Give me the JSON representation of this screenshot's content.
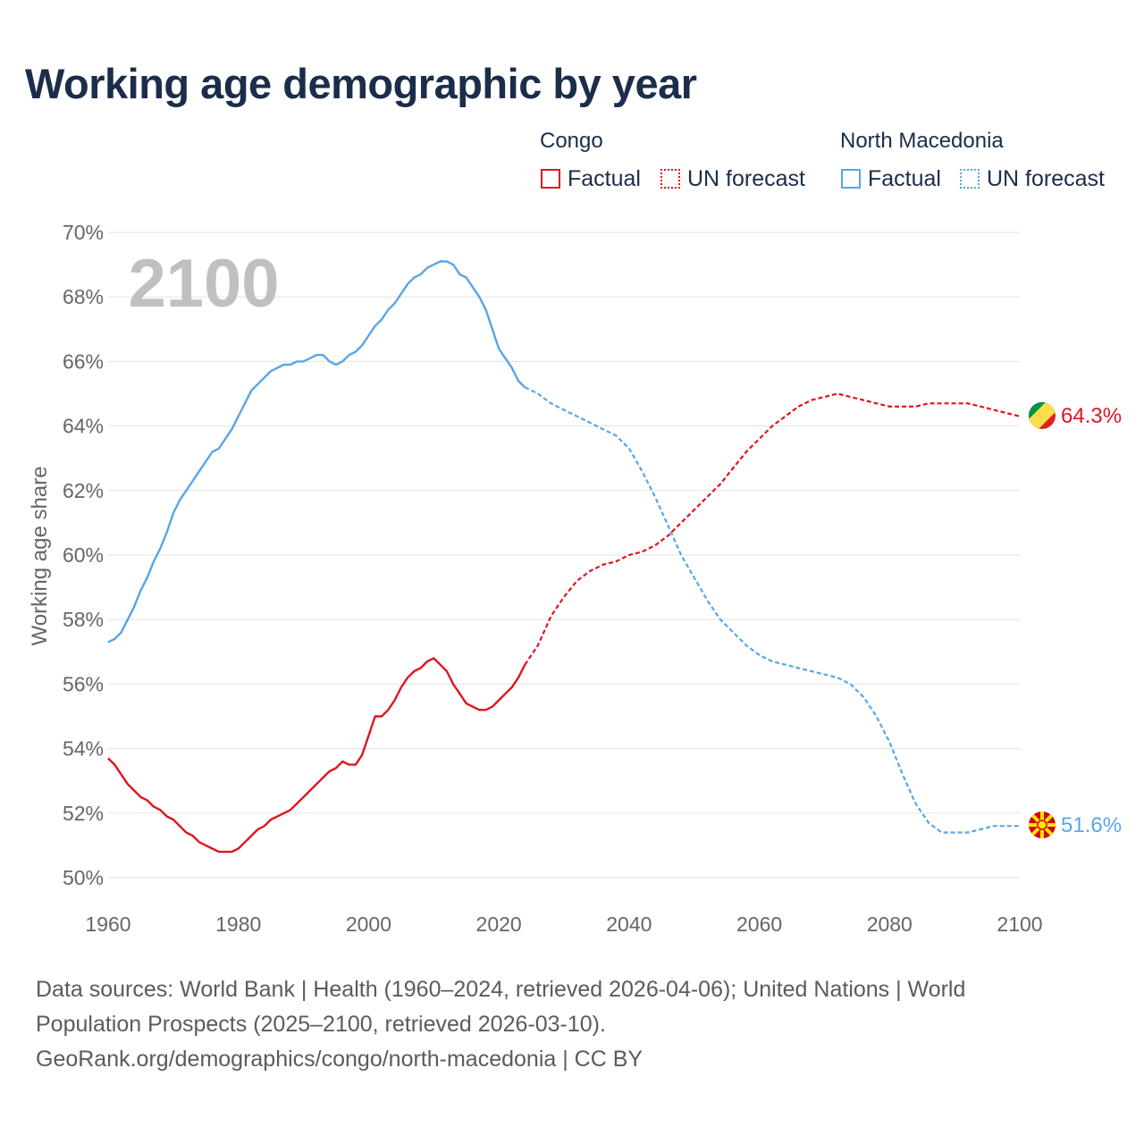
{
  "chart_data": {
    "type": "line",
    "title": "Working age demographic by year",
    "ylabel": "Working age share",
    "xlabel": "",
    "year_label": "2100",
    "xlim": [
      1960,
      2100
    ],
    "ylim": [
      50,
      70
    ],
    "x_ticks": [
      1960,
      1980,
      2000,
      2020,
      2040,
      2060,
      2080,
      2100
    ],
    "y_ticks": [
      50,
      52,
      54,
      56,
      58,
      60,
      62,
      64,
      66,
      68,
      70
    ],
    "y_tick_labels": [
      "50%",
      "52%",
      "54%",
      "56%",
      "58%",
      "60%",
      "62%",
      "64%",
      "66%",
      "68%",
      "70%"
    ],
    "x_tick_labels": [
      "1960",
      "1980",
      "2000",
      "2020",
      "2040",
      "2060",
      "2080",
      "2100"
    ],
    "factual_range": "1960–2024",
    "forecast_range": "2025–2100",
    "series": [
      {
        "country": "Congo",
        "color": "#e0141e",
        "end_label": "64.3%",
        "factual": {
          "x": [
            1960,
            1961,
            1962,
            1963,
            1964,
            1965,
            1966,
            1967,
            1968,
            1969,
            1970,
            1971,
            1972,
            1973,
            1974,
            1975,
            1976,
            1977,
            1978,
            1979,
            1980,
            1981,
            1982,
            1983,
            1984,
            1985,
            1986,
            1987,
            1988,
            1989,
            1990,
            1991,
            1992,
            1993,
            1994,
            1995,
            1996,
            1997,
            1998,
            1999,
            2000,
            2001,
            2002,
            2003,
            2004,
            2005,
            2006,
            2007,
            2008,
            2009,
            2010,
            2011,
            2012,
            2013,
            2014,
            2015,
            2016,
            2017,
            2018,
            2019,
            2020,
            2021,
            2022,
            2023,
            2024
          ],
          "y": [
            53.7,
            53.5,
            53.2,
            52.9,
            52.7,
            52.5,
            52.4,
            52.2,
            52.1,
            51.9,
            51.8,
            51.6,
            51.4,
            51.3,
            51.1,
            51.0,
            50.9,
            50.8,
            50.8,
            50.8,
            50.9,
            51.1,
            51.3,
            51.5,
            51.6,
            51.8,
            51.9,
            52.0,
            52.1,
            52.3,
            52.5,
            52.7,
            52.9,
            53.1,
            53.3,
            53.4,
            53.6,
            53.5,
            53.5,
            53.8,
            54.4,
            55.0,
            55.0,
            55.2,
            55.5,
            55.9,
            56.2,
            56.4,
            56.5,
            56.7,
            56.8,
            56.6,
            56.4,
            56.0,
            55.7,
            55.4,
            55.3,
            55.2,
            55.2,
            55.3,
            55.5,
            55.7,
            55.9,
            56.2,
            56.6
          ]
        },
        "forecast": {
          "x": [
            2024,
            2026,
            2028,
            2030,
            2032,
            2034,
            2036,
            2038,
            2040,
            2042,
            2044,
            2046,
            2048,
            2050,
            2052,
            2054,
            2056,
            2058,
            2060,
            2062,
            2064,
            2066,
            2068,
            2070,
            2072,
            2074,
            2076,
            2078,
            2080,
            2082,
            2084,
            2086,
            2088,
            2090,
            2092,
            2094,
            2096,
            2098,
            2100
          ],
          "y": [
            56.6,
            57.2,
            58.1,
            58.7,
            59.2,
            59.5,
            59.7,
            59.8,
            60.0,
            60.1,
            60.3,
            60.6,
            61.0,
            61.4,
            61.8,
            62.2,
            62.7,
            63.2,
            63.6,
            64.0,
            64.3,
            64.6,
            64.8,
            64.9,
            65.0,
            64.9,
            64.8,
            64.7,
            64.6,
            64.6,
            64.6,
            64.7,
            64.7,
            64.7,
            64.7,
            64.6,
            64.5,
            64.4,
            64.3
          ]
        }
      },
      {
        "country": "North Macedonia",
        "color": "#5aa5e6",
        "end_label": "51.6%",
        "factual": {
          "x": [
            1960,
            1961,
            1962,
            1963,
            1964,
            1965,
            1966,
            1967,
            1968,
            1969,
            1970,
            1971,
            1972,
            1973,
            1974,
            1975,
            1976,
            1977,
            1978,
            1979,
            1980,
            1981,
            1982,
            1983,
            1984,
            1985,
            1986,
            1987,
            1988,
            1989,
            1990,
            1991,
            1992,
            1993,
            1994,
            1995,
            1996,
            1997,
            1998,
            1999,
            2000,
            2001,
            2002,
            2003,
            2004,
            2005,
            2006,
            2007,
            2008,
            2009,
            2010,
            2011,
            2012,
            2013,
            2014,
            2015,
            2016,
            2017,
            2018,
            2019,
            2020,
            2021,
            2022,
            2023,
            2024
          ],
          "y": [
            57.3,
            57.4,
            57.6,
            58.0,
            58.4,
            58.9,
            59.3,
            59.8,
            60.2,
            60.7,
            61.3,
            61.7,
            62.0,
            62.3,
            62.6,
            62.9,
            63.2,
            63.3,
            63.6,
            63.9,
            64.3,
            64.7,
            65.1,
            65.3,
            65.5,
            65.7,
            65.8,
            65.9,
            65.9,
            66.0,
            66.0,
            66.1,
            66.2,
            66.2,
            66.0,
            65.9,
            66.0,
            66.2,
            66.3,
            66.5,
            66.8,
            67.1,
            67.3,
            67.6,
            67.8,
            68.1,
            68.4,
            68.6,
            68.7,
            68.9,
            69.0,
            69.1,
            69.1,
            69.0,
            68.7,
            68.6,
            68.3,
            68.0,
            67.6,
            67.0,
            66.4,
            66.1,
            65.8,
            65.4,
            65.2
          ]
        },
        "forecast": {
          "x": [
            2024,
            2026,
            2028,
            2030,
            2032,
            2034,
            2036,
            2038,
            2040,
            2042,
            2044,
            2046,
            2048,
            2050,
            2052,
            2054,
            2056,
            2058,
            2060,
            2062,
            2064,
            2066,
            2068,
            2070,
            2072,
            2074,
            2076,
            2078,
            2080,
            2082,
            2084,
            2086,
            2088,
            2090,
            2092,
            2094,
            2096,
            2098,
            2100
          ],
          "y": [
            65.2,
            65.0,
            64.7,
            64.5,
            64.3,
            64.1,
            63.9,
            63.7,
            63.3,
            62.6,
            61.8,
            60.9,
            60.0,
            59.3,
            58.6,
            58.0,
            57.6,
            57.2,
            56.9,
            56.7,
            56.6,
            56.5,
            56.4,
            56.3,
            56.2,
            56.0,
            55.6,
            55.0,
            54.2,
            53.2,
            52.3,
            51.7,
            51.4,
            51.4,
            51.4,
            51.5,
            51.6,
            51.6,
            51.6
          ]
        }
      }
    ]
  },
  "legend": {
    "groups": [
      {
        "title": "Congo",
        "factual_label": "Factual",
        "forecast_label": "UN forecast"
      },
      {
        "title": "North Macedonia",
        "factual_label": "Factual",
        "forecast_label": "UN forecast"
      }
    ]
  },
  "source": {
    "line1": "Data sources: World Bank | Health (1960–2024, retrieved 2026-04-06); United Nations | World",
    "line2": "Population Prospects (2025–2100, retrieved 2026-03-10).",
    "line3": "GeoRank.org/demographics/congo/north-macedonia | CC BY"
  },
  "colors": {
    "congo": "#e0141e",
    "north_macedonia": "#5aa5e6",
    "title": "#1b2d4a",
    "grid": "#e3e3e3",
    "axis_text": "#666666",
    "year_watermark": "#c0c0c0"
  }
}
